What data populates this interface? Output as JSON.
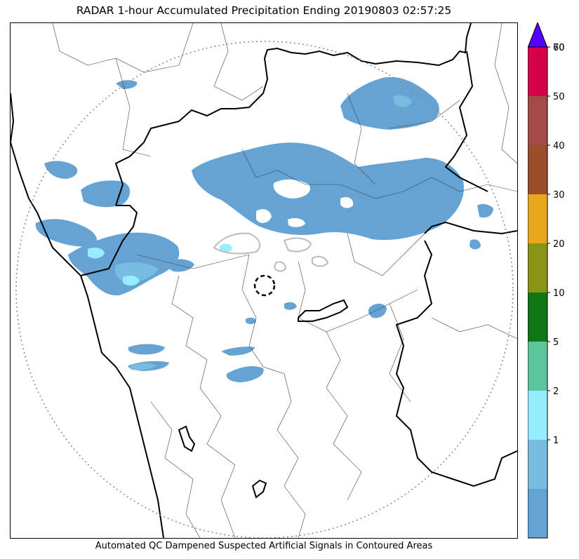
{
  "title": "RADAR 1-hour Accumulated Precipitation Ending 20190803 02:57:25",
  "footer": "Automated QC Dampened Suspected Artificial Signals in Contoured Areas",
  "colorbar": {
    "levels": [
      {
        "label": "",
        "color": "#65a3d5"
      },
      {
        "label": "1",
        "color": "#78bce2"
      },
      {
        "label": "2",
        "color": "#95eefd"
      },
      {
        "label": "5",
        "color": "#5ec49b"
      },
      {
        "label": "10",
        "color": "#107717"
      },
      {
        "label": "20",
        "color": "#8a9417"
      },
      {
        "label": "30",
        "color": "#e9a81b"
      },
      {
        "label": "40",
        "color": "#9b4e2a"
      },
      {
        "label": "50",
        "color": "#a64a47"
      },
      {
        "label": "60",
        "color": "#d50047"
      }
    ],
    "top_label": "70",
    "extend_color": "#5500ff"
  },
  "colors": {
    "precip_light": "#65a3d5",
    "precip_medium": "#78bce2",
    "precip_heavy": "#95eefd",
    "qc_contour": "#bbbbbb",
    "range_ring": "#888888",
    "boundary": "#000000"
  }
}
